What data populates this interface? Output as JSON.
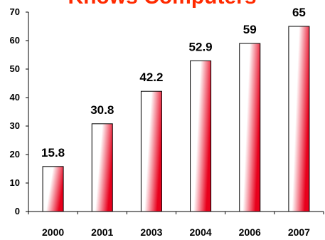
{
  "chart_data": {
    "type": "bar",
    "title": "Knows Computers",
    "categories": [
      "2000",
      "2001",
      "2003",
      "2004",
      "2006",
      "2007"
    ],
    "values": [
      15.8,
      30.8,
      42.2,
      52.9,
      59,
      65
    ],
    "data_labels": [
      "15.8",
      "30.8",
      "42.2",
      "52.9",
      "59",
      "65"
    ],
    "ylim": [
      0,
      70
    ],
    "yticks": [
      0,
      10,
      20,
      30,
      40,
      50,
      60,
      70
    ],
    "xlabel": "",
    "ylabel": "",
    "grid": false,
    "legend": "none",
    "colors": {
      "title": "#ff2a00",
      "bar_gradient_light": "#ffffff",
      "bar_gradient_dark": "#e8001c",
      "bar_outline": "#000000",
      "axis": "#000000"
    }
  }
}
